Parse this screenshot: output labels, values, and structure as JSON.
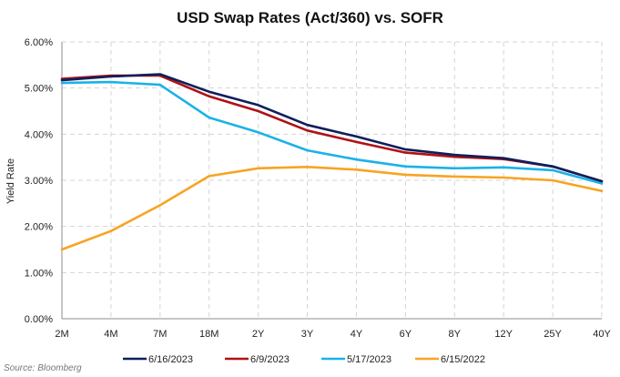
{
  "chart_data": {
    "type": "line",
    "title": "USD Swap Rates (Act/360) vs. SOFR",
    "ylabel": "Yield Rate",
    "xlabel": "",
    "categories": [
      "2M",
      "4M",
      "7M",
      "18M",
      "2Y",
      "3Y",
      "4Y",
      "6Y",
      "8Y",
      "12Y",
      "25Y",
      "40Y"
    ],
    "ylim": [
      0,
      6
    ],
    "yticks": [
      "0.00%",
      "1.00%",
      "2.00%",
      "3.00%",
      "4.00%",
      "5.00%",
      "6.00%"
    ],
    "grid": true,
    "legend_position": "bottom",
    "series": [
      {
        "name": "6/16/2023",
        "color": "#0d1f5c",
        "values": [
          5.17,
          5.25,
          5.3,
          4.92,
          4.63,
          4.2,
          3.95,
          3.67,
          3.55,
          3.48,
          3.3,
          2.98
        ]
      },
      {
        "name": "6/9/2023",
        "color": "#b01116",
        "values": [
          5.2,
          5.27,
          5.27,
          4.82,
          4.5,
          4.08,
          3.83,
          3.6,
          3.51,
          3.46,
          3.3,
          2.98
        ]
      },
      {
        "name": "5/17/2023",
        "color": "#1ab2e8",
        "values": [
          5.11,
          5.13,
          5.07,
          4.36,
          4.04,
          3.65,
          3.45,
          3.3,
          3.26,
          3.28,
          3.22,
          2.93
        ]
      },
      {
        "name": "6/15/2022",
        "color": "#f7a423",
        "values": [
          1.5,
          1.9,
          2.46,
          3.09,
          3.26,
          3.29,
          3.23,
          3.12,
          3.08,
          3.06,
          3.0,
          2.77
        ]
      }
    ]
  },
  "source": "Source: Bloomberg"
}
